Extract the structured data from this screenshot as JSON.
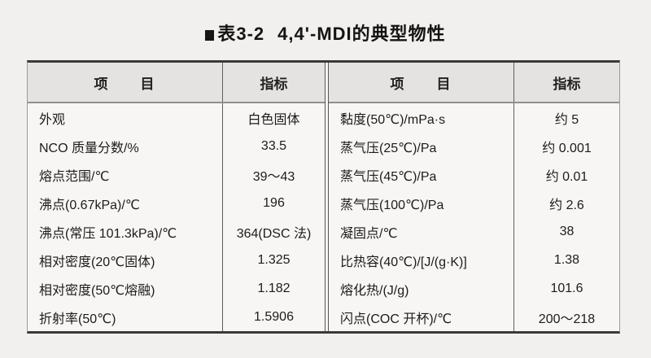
{
  "title": {
    "label": "表3-2",
    "name": "4,4'-MDI的典型物性"
  },
  "table": {
    "header": {
      "item": "项　　目",
      "value": "指标"
    },
    "left_rows": [
      {
        "item": "外观",
        "value": "白色固体"
      },
      {
        "item": "NCO 质量分数/%",
        "value": "33.5"
      },
      {
        "item": "熔点范围/℃",
        "value": "39～43"
      },
      {
        "item": "沸点(0.67kPa)/℃",
        "value": "196"
      },
      {
        "item": "沸点(常压 101.3kPa)/℃",
        "value": "364(DSC 法)"
      },
      {
        "item": "相对密度(20℃固体)",
        "value": "1.325"
      },
      {
        "item": "相对密度(50℃熔融)",
        "value": "1.182"
      },
      {
        "item": "折射率(50℃)",
        "value": "1.5906"
      }
    ],
    "right_rows": [
      {
        "item": "黏度(50℃)/mPa·s",
        "value": "约 5"
      },
      {
        "item": "蒸气压(25℃)/Pa",
        "value": "约 0.001"
      },
      {
        "item": "蒸气压(45℃)/Pa",
        "value": "约 0.01"
      },
      {
        "item": "蒸气压(100℃)/Pa",
        "value": "约 2.6"
      },
      {
        "item": "凝固点/℃",
        "value": "38"
      },
      {
        "item": "比热容(40℃)/[J/(g·K)]",
        "value": "1.38"
      },
      {
        "item": "熔化热/(J/g)",
        "value": "101.6"
      },
      {
        "item": "闪点(COC 开杯)/℃",
        "value": "200～218"
      }
    ]
  }
}
